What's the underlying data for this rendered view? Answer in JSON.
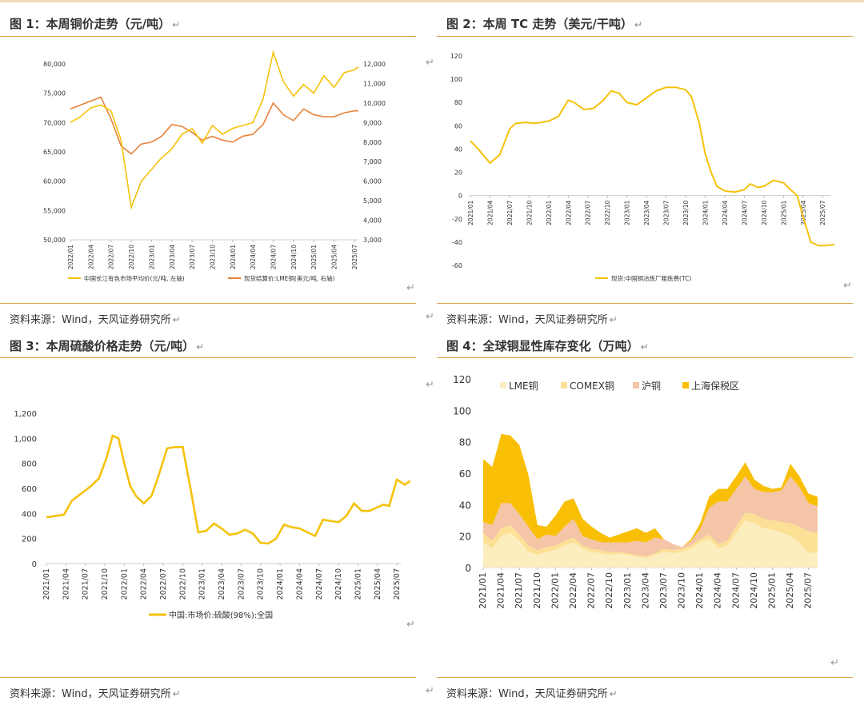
{
  "panels": [
    {
      "title": "图 1：本周铜价走势（元/吨）",
      "source": "资料来源：Wind，天风证券研究所",
      "chart_data": {
        "type": "line",
        "x_ticks": [
          "2022/01",
          "2022/04",
          "2022/07",
          "2022/10",
          "2023/01",
          "2023/04",
          "2023/07",
          "2023/10",
          "2024/01",
          "2024/04",
          "2024/07",
          "2024/10",
          "2025/01",
          "2025/04",
          "2025/07"
        ],
        "y_left_ticks": [
          "50,000",
          "55,000",
          "60,000",
          "65,000",
          "70,000",
          "75,000",
          "80,000"
        ],
        "y_right_ticks": [
          "3,000",
          "4,000",
          "5,000",
          "6,000",
          "7,000",
          "8,000",
          "9,000",
          "10,000",
          "11,000",
          "12,000"
        ],
        "ylim_left": [
          50000,
          80000
        ],
        "ylim_right": [
          3000,
          12000
        ],
        "series": [
          {
            "name": "中国长江有色市场平均价(元/吨, 左轴)",
            "axis": "left",
            "color": "#f5c20a",
            "x": [
              0,
              0.5,
              1,
              1.5,
              2,
              2.5,
              3,
              3.5,
              4,
              4.5,
              5,
              5.5,
              6,
              6.5,
              7,
              7.5,
              8,
              8.5,
              9,
              9.5,
              10,
              10.5,
              11,
              11.5,
              12,
              12.5,
              13,
              13.5,
              14,
              14.2
            ],
            "y": [
              70000,
              71000,
              72500,
              73000,
              72000,
              67000,
              55500,
              60000,
              62000,
              64000,
              65500,
              68000,
              69000,
              66500,
              69500,
              68000,
              69000,
              69500,
              70000,
              74000,
              82000,
              77000,
              74500,
              76500,
              75000,
              78000,
              76000,
              78500,
              79000,
              79500
            ]
          },
          {
            "name": "现货结算价:LME铜(美元/吨, 右轴)",
            "axis": "right",
            "color": "#e8823a",
            "x": [
              0,
              0.5,
              1,
              1.5,
              2,
              2.5,
              3,
              3.5,
              4,
              4.5,
              5,
              5.5,
              6,
              6.5,
              7,
              7.5,
              8,
              8.5,
              9,
              9.5,
              10,
              10.5,
              11,
              11.5,
              12,
              12.5,
              13,
              13.5,
              14,
              14.2
            ],
            "y": [
              9700,
              9900,
              10100,
              10300,
              9200,
              7800,
              7400,
              7900,
              8000,
              8300,
              8900,
              8800,
              8500,
              8100,
              8300,
              8100,
              8000,
              8300,
              8400,
              8900,
              10000,
              9400,
              9100,
              9700,
              9400,
              9300,
              9300,
              9500,
              9600,
              9600
            ]
          }
        ]
      }
    },
    {
      "title": "图 2：本周 TC 走势（美元/干吨）",
      "source": "资料来源：Wind，天风证券研究所",
      "chart_data": {
        "type": "line",
        "x_ticks": [
          "2021/01",
          "2021/04",
          "2021/07",
          "2021/10",
          "2022/01",
          "2022/04",
          "2022/07",
          "2022/10",
          "2023/01",
          "2023/04",
          "2023/07",
          "2023/10",
          "2024/01",
          "2024/04",
          "2024/07",
          "2024/10",
          "2025/01",
          "2025/04",
          "2025/07"
        ],
        "y_ticks": [
          "120",
          "100",
          "80",
          "60",
          "40",
          "20",
          "0",
          "-20",
          "-40",
          "-60"
        ],
        "ylim": [
          -60,
          120
        ],
        "series": [
          {
            "name": "现货:中国铜冶炼厂粗炼费(TC)",
            "color": "#f5c20a",
            "x": [
              0,
              0.4,
              1,
              1.5,
              2,
              2.3,
              2.8,
              3.3,
              4,
              4.5,
              5,
              5.3,
              5.8,
              6.3,
              6.8,
              7.2,
              7.6,
              8,
              8.5,
              9,
              9.5,
              10,
              10.5,
              11,
              11.3,
              11.7,
              12,
              12.3,
              12.6,
              13,
              13.5,
              14,
              14.3,
              14.7,
              15,
              15.5,
              16,
              16.3,
              16.7,
              17,
              17.4,
              17.8,
              18.2,
              18.6
            ],
            "y": [
              47,
              40,
              28,
              35,
              57,
              62,
              63,
              62,
              64,
              68,
              82,
              80,
              74,
              75,
              82,
              90,
              88,
              80,
              78,
              84,
              90,
              93,
              93,
              91,
              85,
              62,
              36,
              20,
              8,
              4,
              3,
              5,
              10,
              7,
              8,
              13,
              11,
              6,
              0,
              -18,
              -40,
              -43,
              -43,
              -42
            ]
          }
        ]
      }
    },
    {
      "title": "图 3：本周硫酸价格走势（元/吨）",
      "source": "资料来源：Wind，天风证券研究所",
      "chart_data": {
        "type": "line",
        "x_ticks": [
          "2021/01",
          "2021/04",
          "2021/07",
          "2021/10",
          "2022/01",
          "2022/04",
          "2022/07",
          "2022/10",
          "2023/01",
          "2023/04",
          "2023/07",
          "2023/10",
          "2024/01",
          "2024/04",
          "2024/07",
          "2024/10",
          "2025/01",
          "2025/04",
          "2025/07"
        ],
        "y_ticks": [
          "0",
          "200",
          "400",
          "600",
          "800",
          "1,000",
          "1,200"
        ],
        "ylim": [
          0,
          1200
        ],
        "series": [
          {
            "name": "中国:市场价:硫酸(98%):全国",
            "color": "#f5c20a",
            "x": [
              0,
              0.5,
              0.9,
              1.3,
              1.8,
              2.3,
              2.7,
              3.1,
              3.4,
              3.7,
              4,
              4.3,
              4.6,
              5,
              5.4,
              5.8,
              6.2,
              6.6,
              7,
              7.4,
              7.8,
              8.2,
              8.6,
              9,
              9.4,
              9.8,
              10.2,
              10.6,
              11,
              11.4,
              11.8,
              12.2,
              12.6,
              13,
              13.4,
              13.8,
              14.2,
              14.6,
              15,
              15.4,
              15.8,
              16.2,
              16.6,
              17,
              17.3,
              17.6,
              18,
              18.4,
              18.7
            ],
            "y": [
              370,
              380,
              390,
              500,
              560,
              620,
              680,
              850,
              1020,
              1000,
              800,
              620,
              540,
              480,
              540,
              720,
              920,
              930,
              930,
              600,
              250,
              260,
              320,
              280,
              230,
              240,
              270,
              240,
              165,
              160,
              200,
              310,
              290,
              280,
              250,
              220,
              350,
              340,
              330,
              380,
              480,
              420,
              420,
              450,
              470,
              460,
              670,
              630,
              660
            ]
          }
        ]
      }
    },
    {
      "title": "图 4：全球铜显性库存变化（万吨）",
      "source": "资料来源：Wind，天风证券研究所",
      "chart_data": {
        "type": "area",
        "x_ticks": [
          "2021/01",
          "2021/04",
          "2021/07",
          "2021/10",
          "2022/01",
          "2022/04",
          "2022/07",
          "2022/10",
          "2023/01",
          "2023/04",
          "2023/07",
          "2023/10",
          "2024/01",
          "2024/04",
          "2024/07",
          "2024/10",
          "2025/01",
          "2025/04",
          "2025/07"
        ],
        "y_ticks": [
          "0",
          "20",
          "40",
          "60",
          "80",
          "100",
          "120"
        ],
        "ylim": [
          0,
          120
        ],
        "x": [
          0,
          0.5,
          1,
          1.5,
          2,
          2.5,
          3,
          3.5,
          4,
          4.5,
          5,
          5.5,
          6,
          6.5,
          7,
          7.5,
          8,
          8.5,
          9,
          9.5,
          10,
          10.5,
          11,
          11.5,
          12,
          12.5,
          13,
          13.5,
          14,
          14.5,
          15,
          15.5,
          16,
          16.5,
          17,
          17.5,
          18,
          18.5
        ],
        "series": [
          {
            "name": "LME铜",
            "color": "#fdeec0",
            "values": [
              16,
              12,
              20,
              22,
              17,
              10,
              8,
              10,
              11,
              14,
              16,
              12,
              10,
              9,
              8,
              9,
              8,
              7,
              6,
              8,
              10,
              9,
              10,
              12,
              16,
              18,
              12,
              14,
              22,
              30,
              28,
              25,
              24,
              22,
              20,
              16,
              9,
              10
            ]
          },
          {
            "name": "COMEX铜",
            "color": "#fce095",
            "values": [
              6,
              5,
              5,
              5,
              4,
              4,
              3,
              3,
              3,
              3,
              3,
              2,
              2,
              2,
              2,
              1,
              1,
              1,
              1,
              1,
              2,
              2,
              2,
              2,
              2,
              3,
              3,
              3,
              4,
              5,
              6,
              6,
              6,
              7,
              8,
              10,
              14,
              12
            ]
          },
          {
            "name": "沪铜",
            "color": "#f4c5a6",
            "values": [
              7,
              10,
              16,
              14,
              13,
              12,
              7,
              8,
              6,
              9,
              12,
              6,
              6,
              5,
              6,
              6,
              7,
              9,
              9,
              10,
              6,
              4,
              1,
              3,
              6,
              17,
              27,
              25,
              24,
              23,
              16,
              17,
              18,
              20,
              30,
              25,
              18,
              17
            ]
          },
          {
            "name": "上海保税区",
            "color": "#f8bf05",
            "values": [
              40,
              37,
              44,
              43,
              44,
              33,
              9,
              5,
              13,
              16,
              13,
              11,
              8,
              6,
              3,
              5,
              7,
              8,
              6,
              6,
              0,
              0,
              0,
              1,
              4,
              7,
              8,
              8,
              8,
              9,
              6,
              4,
              2,
              2,
              8,
              7,
              6,
              6
            ]
          }
        ]
      }
    }
  ]
}
